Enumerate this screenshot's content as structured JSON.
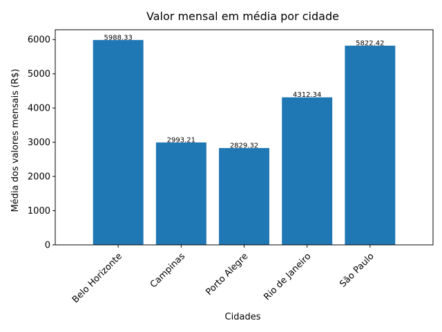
{
  "chart_data": {
    "type": "bar",
    "title": "Valor mensal em média por cidade",
    "xlabel": "Cidades",
    "ylabel": "Média dos valores mensais (R$)",
    "categories": [
      "Belo Horizonte",
      "Campinas",
      "Porto Alegre",
      "Rio de Janeiro",
      "São Paulo"
    ],
    "values": [
      5988.33,
      2993.21,
      2829.32,
      4312.34,
      5822.42
    ],
    "data_labels": [
      "5988.33",
      "2993.21",
      "2829.32",
      "4312.34",
      "5822.42"
    ],
    "ylim": [
      0,
      6287.75
    ],
    "yticks": [
      0,
      1000,
      2000,
      3000,
      4000,
      5000,
      6000
    ],
    "bar_color": "#1f77b4",
    "grid": false,
    "x_tick_rotation_deg": 45
  }
}
